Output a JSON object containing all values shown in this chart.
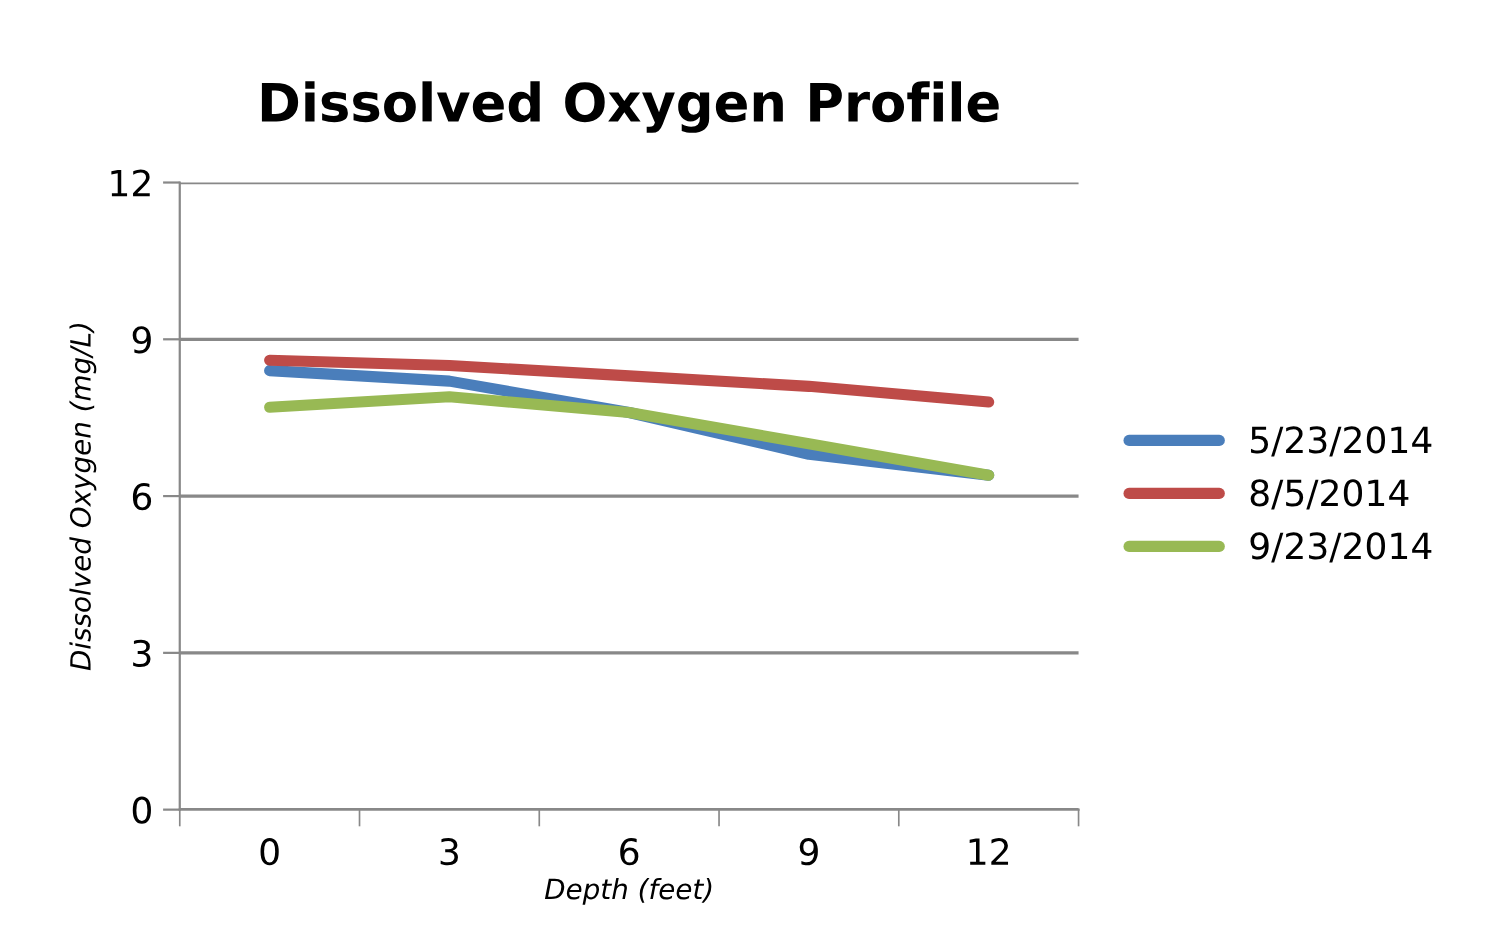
{
  "chart_data": {
    "type": "line",
    "title": "Dissolved Oxygen Profile",
    "xlabel": "Depth (feet)",
    "ylabel": "Dissolved Oxygen (mg/L)",
    "categories": [
      "0",
      "3",
      "6",
      "9",
      "12"
    ],
    "series": [
      {
        "name": "5/23/2014",
        "color": "#4a7ebb",
        "values": [
          8.4,
          8.2,
          7.6,
          6.8,
          6.4
        ]
      },
      {
        "name": "8/5/2014",
        "color": "#be4b48",
        "values": [
          8.6,
          8.5,
          8.3,
          8.1,
          7.8
        ]
      },
      {
        "name": "9/23/2014",
        "color": "#98b954",
        "values": [
          7.7,
          7.9,
          7.6,
          7.0,
          6.4
        ]
      }
    ],
    "ylim": [
      0,
      12
    ],
    "yticks": [
      0,
      3,
      6,
      9,
      12
    ],
    "grid": "y",
    "legend": "right",
    "marker": "none",
    "line_style": "solid"
  }
}
